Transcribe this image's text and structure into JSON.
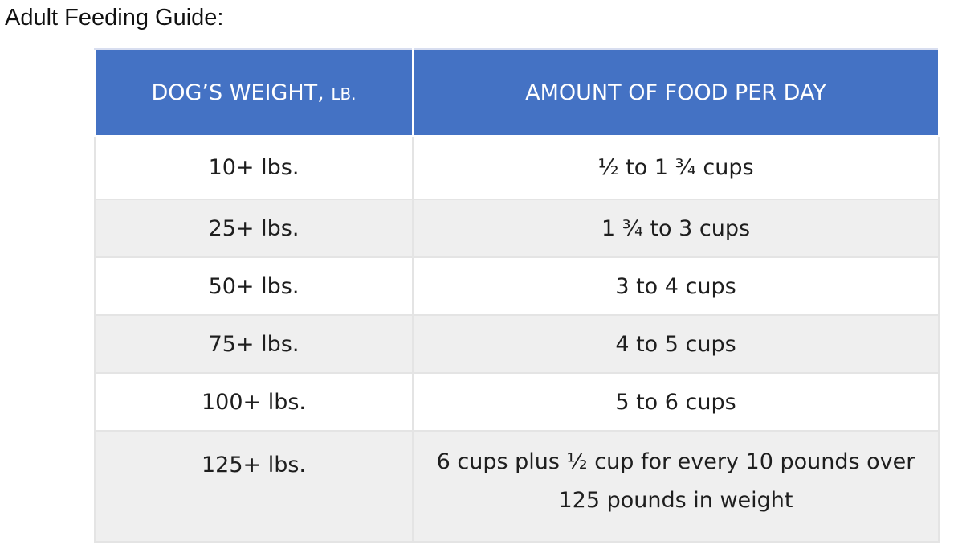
{
  "title": "Adult Feeding Guide:",
  "table": {
    "headers": {
      "weight_main": "DOG’S WEIGHT, ",
      "weight_unit": "LB.",
      "amount": "AMOUNT OF FOOD PER DAY"
    },
    "rows": [
      {
        "weight": "10+ lbs.",
        "amount": "½ to 1 ¾ cups"
      },
      {
        "weight": "25+ lbs.",
        "amount": "1 ¾ to 3 cups"
      },
      {
        "weight": "50+ lbs.",
        "amount": "3 to 4 cups"
      },
      {
        "weight": "75+ lbs.",
        "amount": "4 to 5 cups"
      },
      {
        "weight": "100+ lbs.",
        "amount": "5 to 6 cups"
      },
      {
        "weight": "125+ lbs.",
        "amount": "6 cups plus ½ cup for every 10 pounds over 125 pounds in weight"
      }
    ]
  },
  "colors": {
    "header_bg": "#4472c4",
    "header_text": "#ffffff",
    "alt_row_bg": "#efefef"
  }
}
